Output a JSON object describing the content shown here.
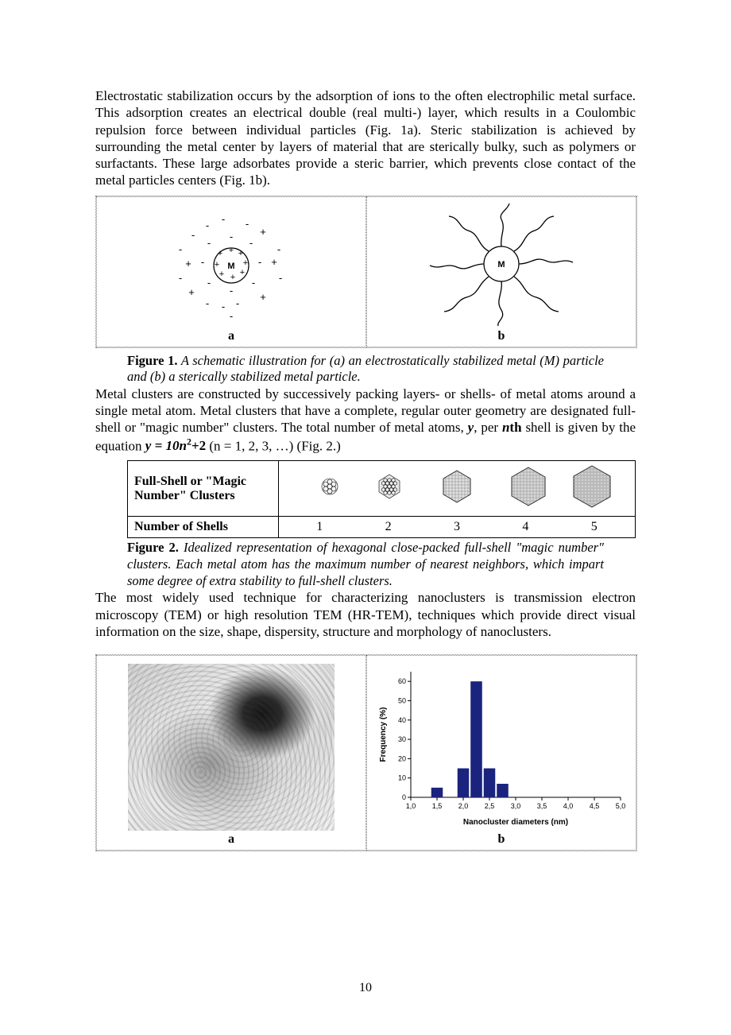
{
  "para1": "Electrostatic stabilization occurs by the adsorption of ions to the often electrophilic metal surface. This adsorption creates an electrical double (real multi-) layer, which results in a Coulombic repulsion force between individual particles (Fig. 1a). Steric stabilization is achieved by surrounding the metal center by layers of material that are sterically bulky, such as polymers or surfactants. These large adsorbates provide a steric barrier, which prevents close contact of the metal particles centers (Fig. 1b).",
  "fig1": {
    "label_a": "a",
    "label_b": "b",
    "center_label": "M",
    "caption_lead": "Figure 1.",
    "caption_rest": " A schematic illustration for (a) an electrostatically stabilized metal (M) particle and (b) a sterically stabilized metal particle."
  },
  "para2_pre": "Metal clusters are constructed by successively packing layers- or shells- of metal atoms around a single metal atom. Metal clusters that have a complete, regular outer geometry are designated full-shell or \"magic number\" clusters. The total number of metal atoms, ",
  "para2_y": "y",
  "para2_mid1": ", per ",
  "para2_n": "n",
  "para2_th": "th",
  "para2_mid2": " shell is given by the equation ",
  "para2_eq_pre": "y = 10",
  "para2_eq_n": "n",
  "para2_eq_sup": "2",
  "para2_eq_post": "+2",
  "para2_post": " (n = 1, 2, 3, …) (Fig. 2.)",
  "shell_table": {
    "header1": "Full-Shell or \"Magic Number\" Clusters",
    "header2": "Number of Shells",
    "numbers": [
      "1",
      "2",
      "3",
      "4",
      "5"
    ]
  },
  "fig2": {
    "caption_lead": "Figure 2.",
    "caption_rest": " Idealized representation of hexagonal close-packed full-shell \"magic number\" clusters. Each metal atom has the maximum number of nearest neighbors, which impart some degree of extra stability to full-shell clusters."
  },
  "para3": "The most widely used technique for characterizing nanoclusters is transmission electron microscopy (TEM) or high resolution TEM (HR-TEM), techniques which provide direct visual information on the size, shape, dispersity, structure and morphology of nanoclusters.",
  "fig3": {
    "label_a": "a",
    "label_b": "b"
  },
  "chart": {
    "type": "bar",
    "xlabel": "Nanocluster diameters (nm)",
    "ylabel": "Frequency (%)",
    "x_ticks": [
      "1,0",
      "1,5",
      "2,0",
      "2,5",
      "3,0",
      "3,5",
      "4,0",
      "4,5",
      "5,0"
    ],
    "y_ticks": [
      0,
      10,
      20,
      30,
      40,
      50,
      60
    ],
    "x_positions": [
      1.5,
      2.0,
      2.25,
      2.5,
      2.75
    ],
    "values": [
      5,
      15,
      60,
      15,
      7
    ],
    "bar_colors": [
      "#1a237e",
      "#1a237e",
      "#1a237e",
      "#1a237e",
      "#1a237e"
    ],
    "xlim": [
      1.0,
      5.0
    ],
    "ylim": [
      0,
      65
    ],
    "bar_width_nm": 0.22,
    "background_color": "#ffffff",
    "axis_color": "#000000",
    "axis_fontsize": 9,
    "label_fontsize": 10,
    "label_fontweight": "bold"
  },
  "page_number": "10"
}
